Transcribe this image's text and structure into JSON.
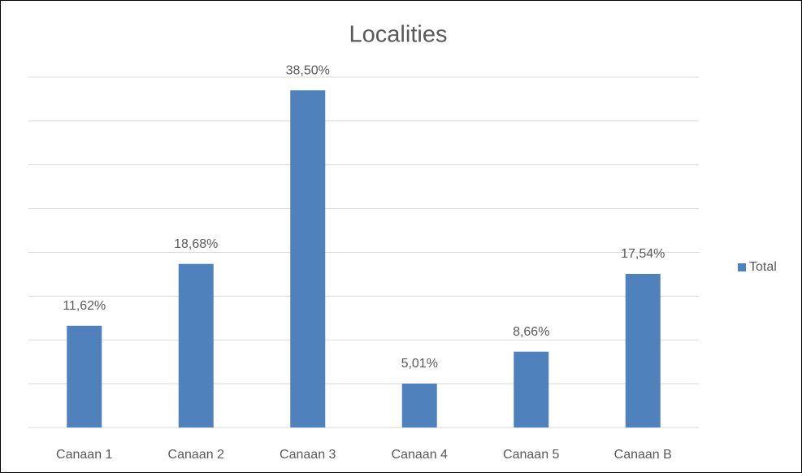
{
  "chart_data": {
    "type": "bar",
    "title": "Localities",
    "categories": [
      "Canaan 1",
      "Canaan 2",
      "Canaan 3",
      "Canaan 4",
      "Canaan 5",
      "Canaan B"
    ],
    "series": [
      {
        "name": "Total",
        "color": "#4f81bd",
        "values": [
          11.62,
          18.68,
          38.5,
          5.01,
          8.66,
          17.54
        ],
        "value_labels": [
          "11,62%",
          "18,68%",
          "38,50%",
          "5,01%",
          "8,66%",
          "17,54%"
        ]
      }
    ],
    "ylim": [
      0,
      40
    ],
    "yticks": [
      0,
      5,
      10,
      15,
      20,
      25,
      30,
      35,
      40
    ],
    "grid": true,
    "legend": "right"
  }
}
